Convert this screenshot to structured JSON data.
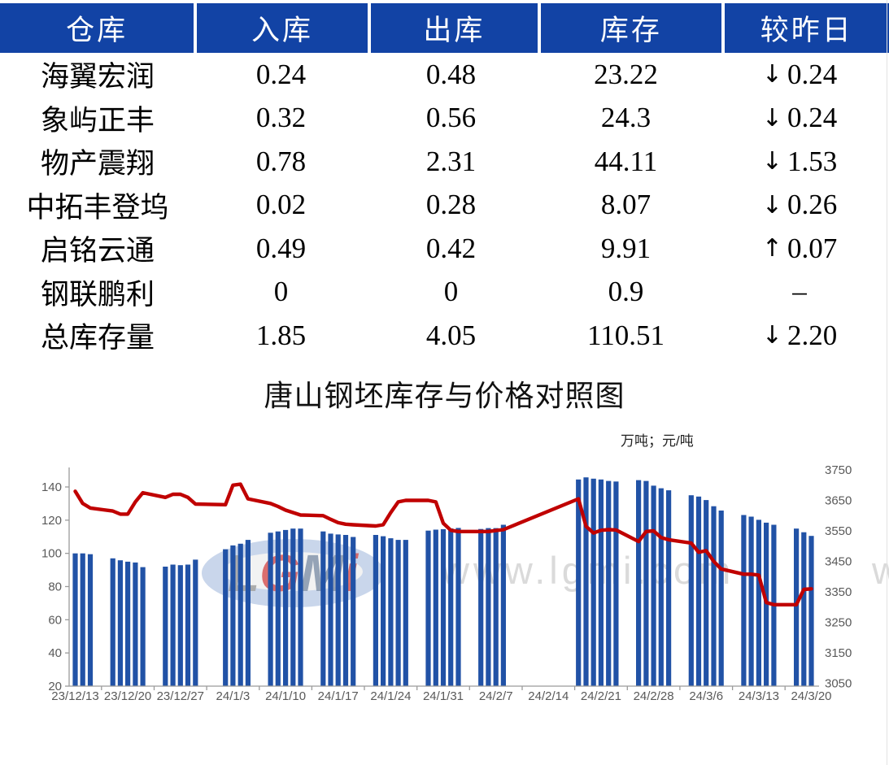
{
  "table": {
    "headers": [
      "仓库",
      "入库",
      "出库",
      "库存",
      "较昨日"
    ],
    "rows": [
      {
        "name": "海翼宏润",
        "inbound": "0.24",
        "outbound": "0.48",
        "stock": "23.22",
        "change": "0.24",
        "dir": "down"
      },
      {
        "name": "象屿正丰",
        "inbound": "0.32",
        "outbound": "0.56",
        "stock": "24.3",
        "change": "0.24",
        "dir": "down"
      },
      {
        "name": "物产震翔",
        "inbound": "0.78",
        "outbound": "2.31",
        "stock": "44.11",
        "change": "1.53",
        "dir": "down"
      },
      {
        "name": "中拓丰登坞",
        "inbound": "0.02",
        "outbound": "0.28",
        "stock": "8.07",
        "change": "0.26",
        "dir": "down"
      },
      {
        "name": "启铭云通",
        "inbound": "0.49",
        "outbound": "0.42",
        "stock": "9.91",
        "change": "0.07",
        "dir": "up"
      },
      {
        "name": "钢联鹏利",
        "inbound": "0",
        "outbound": "0",
        "stock": "0.9",
        "change": "–",
        "dir": "none"
      },
      {
        "name": "总库存量",
        "inbound": "1.85",
        "outbound": "4.05",
        "stock": "110.51",
        "change": "2.20",
        "dir": "down"
      }
    ],
    "colors": {
      "header_bg": "#1243a5",
      "header_text": "#ffffff",
      "down": "#00a651",
      "up": "#fe0000"
    }
  },
  "chart": {
    "title": "唐山钢坯库存与价格对照图",
    "unit_label": "万吨；元/吨",
    "watermark": {
      "logo_text": "LGMi",
      "url_text": "www.lgmi.com",
      "url_partial": "w"
    },
    "colors": {
      "bar": "#2152a6",
      "line": "#c00000",
      "axis": "#9b9b9b",
      "tick_text": "#595959",
      "logo_ellipse": "#c9d6eb",
      "logo_gray": "#a6a6a6",
      "logo_red": "#d96060",
      "logo_blue": "#8b9bb0",
      "watermark_text": "#dadada"
    }
  },
  "chart_data": {
    "type": "combo",
    "title": "唐山钢坯库存与价格对照图",
    "x_ticks": [
      "23/12/13",
      "23/12/20",
      "23/12/27",
      "24/1/3",
      "24/1/10",
      "24/1/17",
      "24/1/24",
      "24/1/31",
      "24/2/7",
      "24/2/14",
      "24/2/21",
      "24/2/28",
      "24/3/6",
      "24/3/13",
      "24/3/20"
    ],
    "left_axis": {
      "label": "万吨",
      "ticks": [
        20,
        40,
        60,
        80,
        100,
        120,
        140
      ],
      "min": 20,
      "max": 152
    },
    "right_axis": {
      "label": "元/吨",
      "ticks": [
        3050,
        3150,
        3250,
        3350,
        3450,
        3550,
        3650,
        3750
      ],
      "min": 3050,
      "max": 3750
    },
    "grid": false,
    "legend": "none",
    "series": [
      {
        "name": "库存",
        "type": "bar",
        "axis": "left",
        "points": [
          [
            "23/12/13",
            100.0
          ],
          [
            "23/12/14",
            100.0
          ],
          [
            "23/12/15",
            99.5
          ],
          [
            "23/12/18",
            97.0
          ],
          [
            "23/12/19",
            95.8
          ],
          [
            "23/12/20",
            95.0
          ],
          [
            "23/12/21",
            94.5
          ],
          [
            "23/12/22",
            91.7
          ],
          [
            "23/12/25",
            92.0
          ],
          [
            "23/12/26",
            93.2
          ],
          [
            "23/12/27",
            92.9
          ],
          [
            "23/12/28",
            93.2
          ],
          [
            "23/12/29",
            96.2
          ],
          [
            "24/1/2",
            102.5
          ],
          [
            "24/1/3",
            104.8
          ],
          [
            "24/1/4",
            105.8
          ],
          [
            "24/1/5",
            108.1
          ],
          [
            "24/1/8",
            112.4
          ],
          [
            "24/1/9",
            113.2
          ],
          [
            "24/1/10",
            114.1
          ],
          [
            "24/1/11",
            114.9
          ],
          [
            "24/1/12",
            114.9
          ],
          [
            "24/1/15",
            113.2
          ],
          [
            "24/1/16",
            111.9
          ],
          [
            "24/1/17",
            111.4
          ],
          [
            "24/1/18",
            111.1
          ],
          [
            "24/1/19",
            109.9
          ],
          [
            "24/1/22",
            111.1
          ],
          [
            "24/1/23",
            110.3
          ],
          [
            "24/1/24",
            109.1
          ],
          [
            "24/1/25",
            108.1
          ],
          [
            "24/1/26",
            108.1
          ],
          [
            "24/1/29",
            113.7
          ],
          [
            "24/1/30",
            114.3
          ],
          [
            "24/1/31",
            114.6
          ],
          [
            "24/2/1",
            115.0
          ],
          [
            "24/2/2",
            115.3
          ],
          [
            "24/2/5",
            114.7
          ],
          [
            "24/2/6",
            115.2
          ],
          [
            "24/2/7",
            115.2
          ],
          [
            "24/2/8",
            117.2
          ],
          [
            "24/2/18",
            144.5
          ],
          [
            "24/2/19",
            145.8
          ],
          [
            "24/2/20",
            145.0
          ],
          [
            "24/2/21",
            144.5
          ],
          [
            "24/2/22",
            143.6
          ],
          [
            "24/2/23",
            143.3
          ],
          [
            "24/2/26",
            144.1
          ],
          [
            "24/2/27",
            143.6
          ],
          [
            "24/2/28",
            140.8
          ],
          [
            "24/2/29",
            139.2
          ],
          [
            "24/3/1",
            138.0
          ],
          [
            "24/3/4",
            135.0
          ],
          [
            "24/3/5",
            134.2
          ],
          [
            "24/3/6",
            132.1
          ],
          [
            "24/3/7",
            128.4
          ],
          [
            "24/3/8",
            125.8
          ],
          [
            "24/3/11",
            123.1
          ],
          [
            "24/3/12",
            122.1
          ],
          [
            "24/3/13",
            120.2
          ],
          [
            "24/3/14",
            118.5
          ],
          [
            "24/3/15",
            117.2
          ],
          [
            "24/3/18",
            114.9
          ],
          [
            "24/3/19",
            112.7
          ],
          [
            "24/3/20",
            110.5
          ]
        ]
      },
      {
        "name": "价格",
        "type": "line",
        "axis": "right",
        "points": [
          [
            "23/12/13",
            3680
          ],
          [
            "23/12/14",
            3640
          ],
          [
            "23/12/15",
            3625
          ],
          [
            "23/12/18",
            3615
          ],
          [
            "23/12/19",
            3605
          ],
          [
            "23/12/20",
            3605
          ],
          [
            "23/12/21",
            3645
          ],
          [
            "23/12/22",
            3675
          ],
          [
            "23/12/25",
            3660
          ],
          [
            "23/12/26",
            3670
          ],
          [
            "23/12/27",
            3670
          ],
          [
            "23/12/28",
            3660
          ],
          [
            "23/12/29",
            3638
          ],
          [
            "24/1/2",
            3636
          ],
          [
            "24/1/3",
            3700
          ],
          [
            "24/1/4",
            3703
          ],
          [
            "24/1/5",
            3655
          ],
          [
            "24/1/8",
            3640
          ],
          [
            "24/1/9",
            3630
          ],
          [
            "24/1/10",
            3618
          ],
          [
            "24/1/11",
            3610
          ],
          [
            "24/1/12",
            3602
          ],
          [
            "24/1/15",
            3600
          ],
          [
            "24/1/16",
            3588
          ],
          [
            "24/1/17",
            3577
          ],
          [
            "24/1/18",
            3572
          ],
          [
            "24/1/19",
            3570
          ],
          [
            "24/1/22",
            3566
          ],
          [
            "24/1/23",
            3570
          ],
          [
            "24/1/24",
            3610
          ],
          [
            "24/1/25",
            3645
          ],
          [
            "24/1/26",
            3650
          ],
          [
            "24/1/29",
            3650
          ],
          [
            "24/1/30",
            3645
          ],
          [
            "24/1/31",
            3575
          ],
          [
            "24/2/1",
            3552
          ],
          [
            "24/2/2",
            3548
          ],
          [
            "24/2/5",
            3548
          ],
          [
            "24/2/6",
            3548
          ],
          [
            "24/2/7",
            3551
          ],
          [
            "24/2/8",
            3554
          ],
          [
            "24/2/18",
            3655
          ],
          [
            "24/2/19",
            3565
          ],
          [
            "24/2/20",
            3543
          ],
          [
            "24/2/21",
            3552
          ],
          [
            "24/2/22",
            3554
          ],
          [
            "24/2/23",
            3553
          ],
          [
            "24/2/26",
            3515
          ],
          [
            "24/2/27",
            3548
          ],
          [
            "24/2/28",
            3550
          ],
          [
            "24/2/29",
            3528
          ],
          [
            "24/3/1",
            3521
          ],
          [
            "24/3/4",
            3510
          ],
          [
            "24/3/5",
            3480
          ],
          [
            "24/3/6",
            3485
          ],
          [
            "24/3/7",
            3450
          ],
          [
            "24/3/8",
            3425
          ],
          [
            "24/3/11",
            3408
          ],
          [
            "24/3/12",
            3408
          ],
          [
            "24/3/13",
            3405
          ],
          [
            "24/3/14",
            3315
          ],
          [
            "24/3/15",
            3308
          ],
          [
            "24/3/18",
            3308
          ],
          [
            "24/3/19",
            3358
          ],
          [
            "24/3/20",
            3360
          ]
        ]
      }
    ]
  }
}
